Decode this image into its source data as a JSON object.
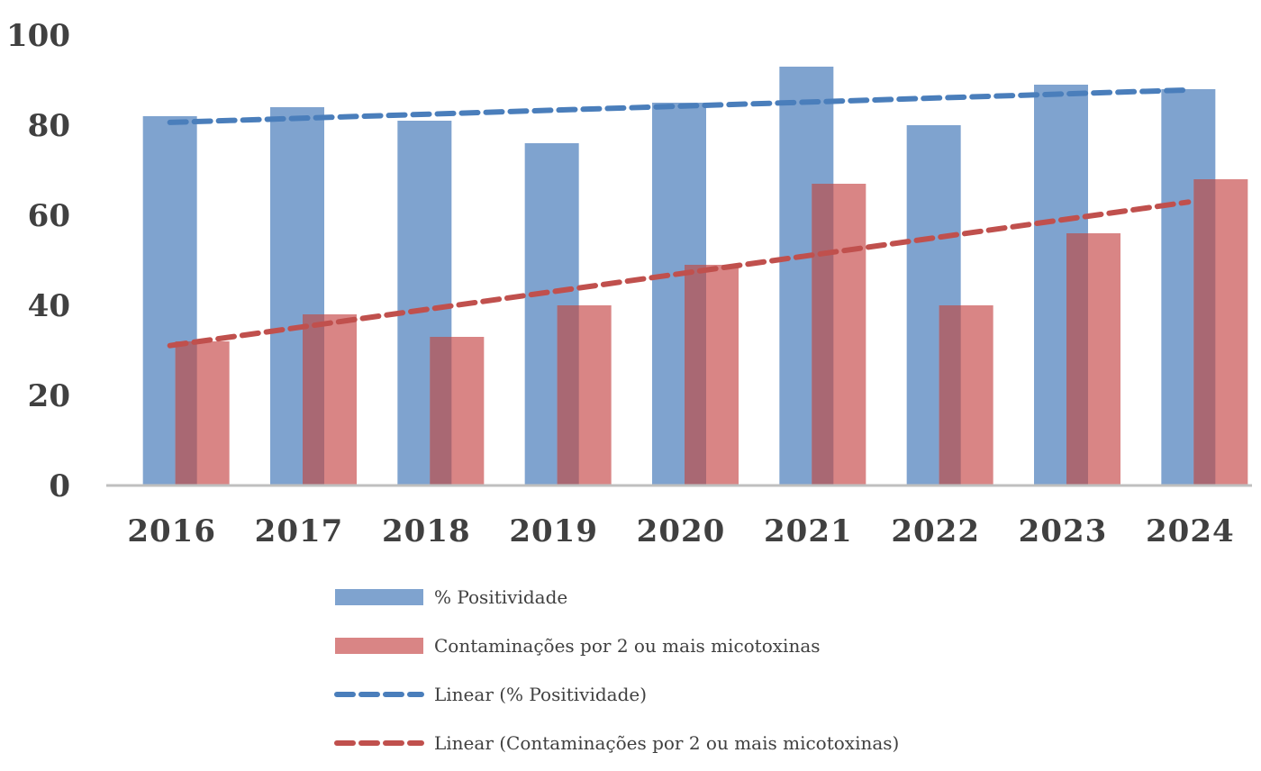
{
  "chart_data": {
    "type": "bar",
    "categories": [
      "2016",
      "2017",
      "2018",
      "2019",
      "2020",
      "2021",
      "2022",
      "2023",
      "2024"
    ],
    "ylim": [
      0,
      100
    ],
    "yticks": [
      0,
      20,
      40,
      60,
      80,
      100
    ],
    "grid": false,
    "legend_position": "bottom",
    "series": [
      {
        "name": "% Positividade",
        "kind": "bar",
        "color": "#7fa3cf",
        "values": [
          82,
          84,
          81,
          76,
          85,
          93,
          80,
          89,
          88
        ]
      },
      {
        "name": "Contaminações por 2 ou mais micotoxinas",
        "kind": "bar",
        "color": "#d98585",
        "values": [
          32,
          38,
          33,
          40,
          49,
          67,
          40,
          56,
          68
        ]
      },
      {
        "name": "Linear (% Positividade)",
        "kind": "trendline",
        "trend_of": "% Positividade",
        "color": "#4a7ebb"
      },
      {
        "name": "Linear (Contaminações por 2 ou mais micotoxinas)",
        "kind": "trendline",
        "trend_of": "Contaminações por 2 ou mais micotoxinas",
        "color": "#c0504d"
      }
    ],
    "overlap_color": "#a96873"
  }
}
